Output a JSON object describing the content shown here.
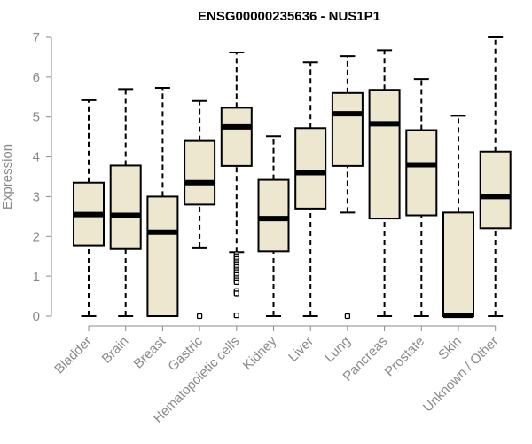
{
  "chart_data": {
    "type": "box",
    "title": "ENSG00000235636 - NUS1P1",
    "xlabel": "",
    "ylabel": "Expression",
    "ylim": [
      0,
      7
    ],
    "yticks": [
      0,
      1,
      2,
      3,
      4,
      5,
      6,
      7
    ],
    "box_fill": "#ede7cf",
    "box_stroke": "#000000",
    "axis_color": "#8a8a8a",
    "categories": [
      "Bladder",
      "Brain",
      "Breast",
      "Gastric",
      "Hematopoietic cells",
      "Kidney",
      "Liver",
      "Lung",
      "Pancreas",
      "Prostate",
      "Skin",
      "Unknown / Other"
    ],
    "boxes": [
      {
        "category": "Bladder",
        "whisker_low": 0,
        "q1": 1.77,
        "median": 2.55,
        "q3": 3.35,
        "whisker_high": 5.42,
        "outliers": []
      },
      {
        "category": "Brain",
        "whisker_low": 0,
        "q1": 1.7,
        "median": 2.53,
        "q3": 3.78,
        "whisker_high": 5.7,
        "outliers": []
      },
      {
        "category": "Breast",
        "whisker_low": 0,
        "q1": 0,
        "median": 2.1,
        "q3": 3.0,
        "whisker_high": 5.73,
        "outliers": []
      },
      {
        "category": "Gastric",
        "whisker_low": 1.72,
        "q1": 2.8,
        "median": 3.35,
        "q3": 4.4,
        "whisker_high": 5.4,
        "outliers": [
          0
        ]
      },
      {
        "category": "Hematopoietic cells",
        "whisker_low": 1.6,
        "q1": 3.77,
        "median": 4.75,
        "q3": 5.23,
        "whisker_high": 6.62,
        "outliers": [
          1.55,
          1.5,
          1.45,
          1.4,
          1.35,
          1.3,
          1.25,
          1.2,
          1.15,
          1.1,
          1.05,
          1.0,
          0.95,
          0.9,
          0.85,
          0.63,
          0.57,
          0.02
        ]
      },
      {
        "category": "Kidney",
        "whisker_low": 0,
        "q1": 1.62,
        "median": 2.45,
        "q3": 3.42,
        "whisker_high": 4.52,
        "outliers": []
      },
      {
        "category": "Liver",
        "whisker_low": 0,
        "q1": 2.7,
        "median": 3.6,
        "q3": 4.72,
        "whisker_high": 6.37,
        "outliers": []
      },
      {
        "category": "Lung",
        "whisker_low": 2.6,
        "q1": 3.77,
        "median": 5.08,
        "q3": 5.6,
        "whisker_high": 6.53,
        "outliers": [
          0
        ]
      },
      {
        "category": "Pancreas",
        "whisker_low": 0,
        "q1": 2.45,
        "median": 4.83,
        "q3": 5.68,
        "whisker_high": 6.68,
        "outliers": []
      },
      {
        "category": "Prostate",
        "whisker_low": 0,
        "q1": 2.53,
        "median": 3.8,
        "q3": 4.67,
        "whisker_high": 5.95,
        "outliers": []
      },
      {
        "category": "Skin",
        "whisker_low": 0,
        "q1": 0,
        "median": 0.02,
        "q3": 2.6,
        "whisker_high": 5.03,
        "outliers": []
      },
      {
        "category": "Unknown / Other",
        "whisker_low": 0,
        "q1": 2.2,
        "median": 3.0,
        "q3": 4.13,
        "whisker_high": 7.0,
        "outliers": []
      }
    ]
  }
}
